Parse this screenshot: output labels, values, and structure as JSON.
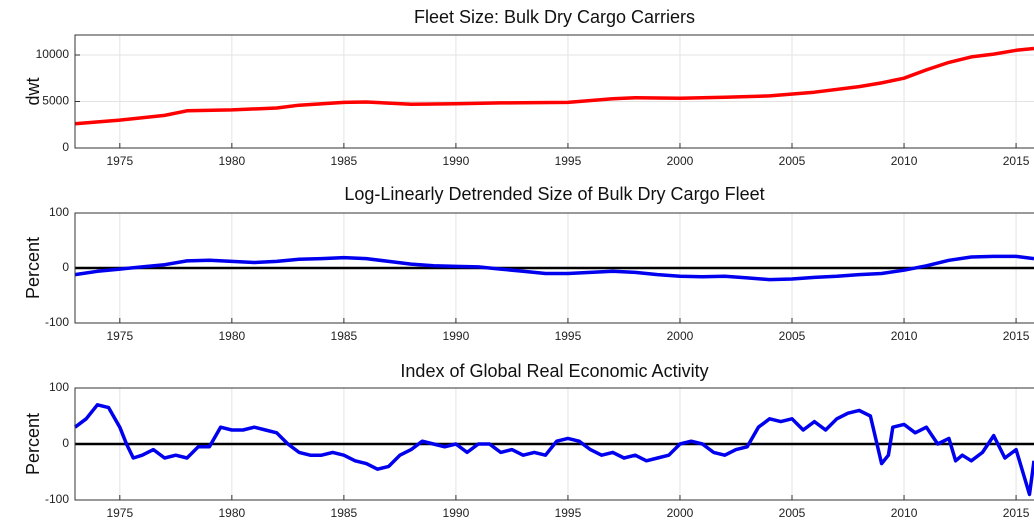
{
  "chart_data": [
    {
      "type": "line",
      "title": "Fleet Size: Bulk Dry Cargo Carriers",
      "ylabel": "dwt",
      "color": "#ff0000",
      "grid": true,
      "xlim": [
        1973,
        2015.8
      ],
      "xticks": [
        1975,
        1980,
        1985,
        1990,
        1995,
        2000,
        2005,
        2010,
        2015
      ],
      "ylim": [
        0,
        12150
      ],
      "yticks": [
        0,
        5000,
        10000
      ],
      "x": [
        1973,
        1975,
        1977,
        1978,
        1980,
        1982,
        1983,
        1985,
        1986,
        1988,
        1990,
        1992,
        1995,
        1997,
        1998,
        2000,
        2002,
        2004,
        2006,
        2008,
        2009,
        2010,
        2011,
        2012,
        2013,
        2014,
        2015,
        2015.8
      ],
      "values": [
        2600,
        3000,
        3500,
        4000,
        4100,
        4300,
        4600,
        4900,
        4950,
        4700,
        4750,
        4850,
        4900,
        5300,
        5400,
        5350,
        5450,
        5600,
        6000,
        6600,
        7000,
        7500,
        8400,
        9200,
        9800,
        10100,
        10500,
        10700
      ]
    },
    {
      "type": "line",
      "title": "Log-Linearly Detrended Size of Bulk Dry Cargo Fleet",
      "ylabel": "Percent",
      "color": "#0000ee",
      "grid": true,
      "zero_line": 0,
      "xlim": [
        1973,
        2015.8
      ],
      "xticks": [
        1975,
        1980,
        1985,
        1990,
        1995,
        2000,
        2005,
        2010,
        2015
      ],
      "ylim": [
        -100,
        100
      ],
      "yticks": [
        -100,
        0,
        100
      ],
      "x": [
        1973,
        1974,
        1975,
        1976,
        1977,
        1978,
        1979,
        1980,
        1981,
        1982,
        1983,
        1984,
        1985,
        1986,
        1987,
        1988,
        1989,
        1990,
        1991,
        1992,
        1993,
        1994,
        1995,
        1996,
        1997,
        1998,
        1999,
        2000,
        2001,
        2002,
        2003,
        2004,
        2005,
        2006,
        2007,
        2008,
        2009,
        2010,
        2011,
        2012,
        2013,
        2014,
        2015,
        2015.8
      ],
      "values": [
        -12,
        -6,
        -2,
        2,
        6,
        13,
        14,
        12,
        10,
        12,
        16,
        17,
        19,
        17,
        12,
        7,
        4,
        3,
        2,
        -2,
        -6,
        -10,
        -10,
        -8,
        -6,
        -8,
        -12,
        -15,
        -16,
        -15,
        -18,
        -21,
        -20,
        -17,
        -15,
        -12,
        -10,
        -4,
        4,
        14,
        20,
        21,
        21,
        17
      ]
    },
    {
      "type": "line",
      "title": "Index of Global Real Economic Activity",
      "ylabel": "Percent",
      "color": "#0000ee",
      "grid": true,
      "zero_line": 0,
      "xlim": [
        1973,
        2015.8
      ],
      "xticks": [
        1975,
        1980,
        1985,
        1990,
        1995,
        2000,
        2005,
        2010,
        2015
      ],
      "ylim": [
        -100,
        100
      ],
      "yticks": [
        -100,
        0,
        100
      ],
      "x": [
        1973,
        1973.5,
        1974,
        1974.5,
        1975,
        1975.3,
        1975.6,
        1976,
        1976.5,
        1977,
        1977.5,
        1978,
        1978.5,
        1979,
        1979.5,
        1980,
        1980.5,
        1981,
        1981.5,
        1982,
        1982.5,
        1983,
        1983.5,
        1984,
        1984.5,
        1985,
        1985.5,
        1986,
        1986.5,
        1987,
        1987.5,
        1988,
        1988.5,
        1989,
        1989.5,
        1990,
        1990.5,
        1991,
        1991.5,
        1992,
        1992.5,
        1993,
        1993.5,
        1994,
        1994.5,
        1995,
        1995.5,
        1996,
        1996.5,
        1997,
        1997.5,
        1998,
        1998.5,
        1999,
        1999.5,
        2000,
        2000.5,
        2001,
        2001.5,
        2002,
        2002.5,
        2003,
        2003.5,
        2004,
        2004.5,
        2005,
        2005.5,
        2006,
        2006.5,
        2007,
        2007.5,
        2008,
        2008.5,
        2009,
        2009.3,
        2009.5,
        2010,
        2010.5,
        2011,
        2011.5,
        2012,
        2012.3,
        2012.6,
        2013,
        2013.5,
        2014,
        2014.5,
        2015,
        2015.3,
        2015.6,
        2015.8
      ],
      "values": [
        30,
        45,
        70,
        65,
        30,
        0,
        -25,
        -20,
        -10,
        -25,
        -20,
        -25,
        -5,
        -5,
        30,
        25,
        25,
        30,
        25,
        20,
        0,
        -15,
        -20,
        -20,
        -15,
        -20,
        -30,
        -35,
        -45,
        -40,
        -20,
        -10,
        5,
        0,
        -5,
        0,
        -15,
        0,
        0,
        -15,
        -10,
        -20,
        -15,
        -20,
        5,
        10,
        5,
        -10,
        -20,
        -15,
        -25,
        -20,
        -30,
        -25,
        -20,
        0,
        5,
        0,
        -15,
        -20,
        -10,
        -5,
        30,
        45,
        40,
        45,
        25,
        40,
        25,
        45,
        55,
        60,
        50,
        -35,
        -20,
        30,
        35,
        20,
        30,
        0,
        10,
        -30,
        -20,
        -30,
        -15,
        15,
        -25,
        -10,
        -50,
        -90,
        -30
      ]
    }
  ]
}
